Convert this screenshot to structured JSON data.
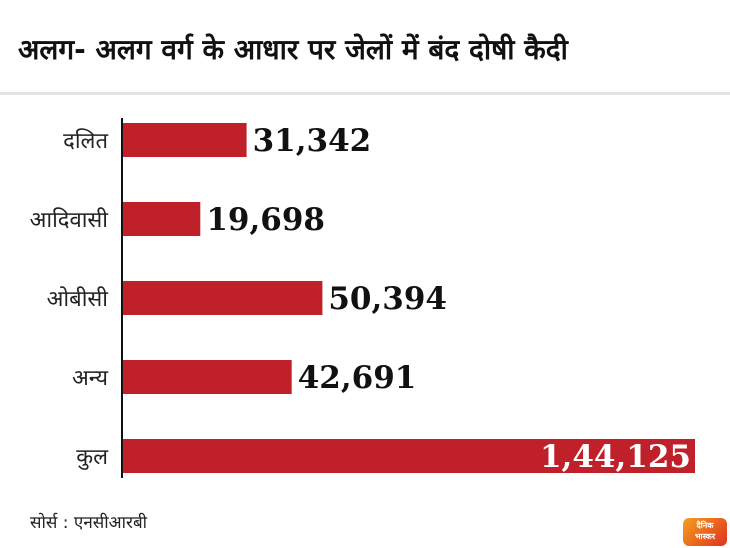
{
  "title": "अलग- अलग वर्ग के आधार पर जेलों में बंद दोषी कैदी",
  "source": "सोर्स : एनसीआरबी",
  "logo": {
    "line1": "दैनिक",
    "line2": "भास्कर"
  },
  "colors": {
    "bar": "#c0202a",
    "axis": "#111111",
    "rule": "#e4e4e4"
  },
  "chart_data": {
    "type": "bar",
    "orientation": "horizontal",
    "title": "अलग- अलग वर्ग के आधार पर जेलों में बंद दोषी कैदी",
    "categories": [
      "दलित",
      "आदिवासी",
      "ओबीसी",
      "अन्य",
      "कुल"
    ],
    "values": [
      31342,
      19698,
      50394,
      42691,
      144125
    ],
    "value_labels": [
      "31,342",
      "19,698",
      "50,394",
      "42,691",
      "1,44,125"
    ],
    "xlabel": "",
    "ylabel": "",
    "xlim": [
      0,
      144125
    ],
    "grid": false,
    "legend": "none"
  }
}
